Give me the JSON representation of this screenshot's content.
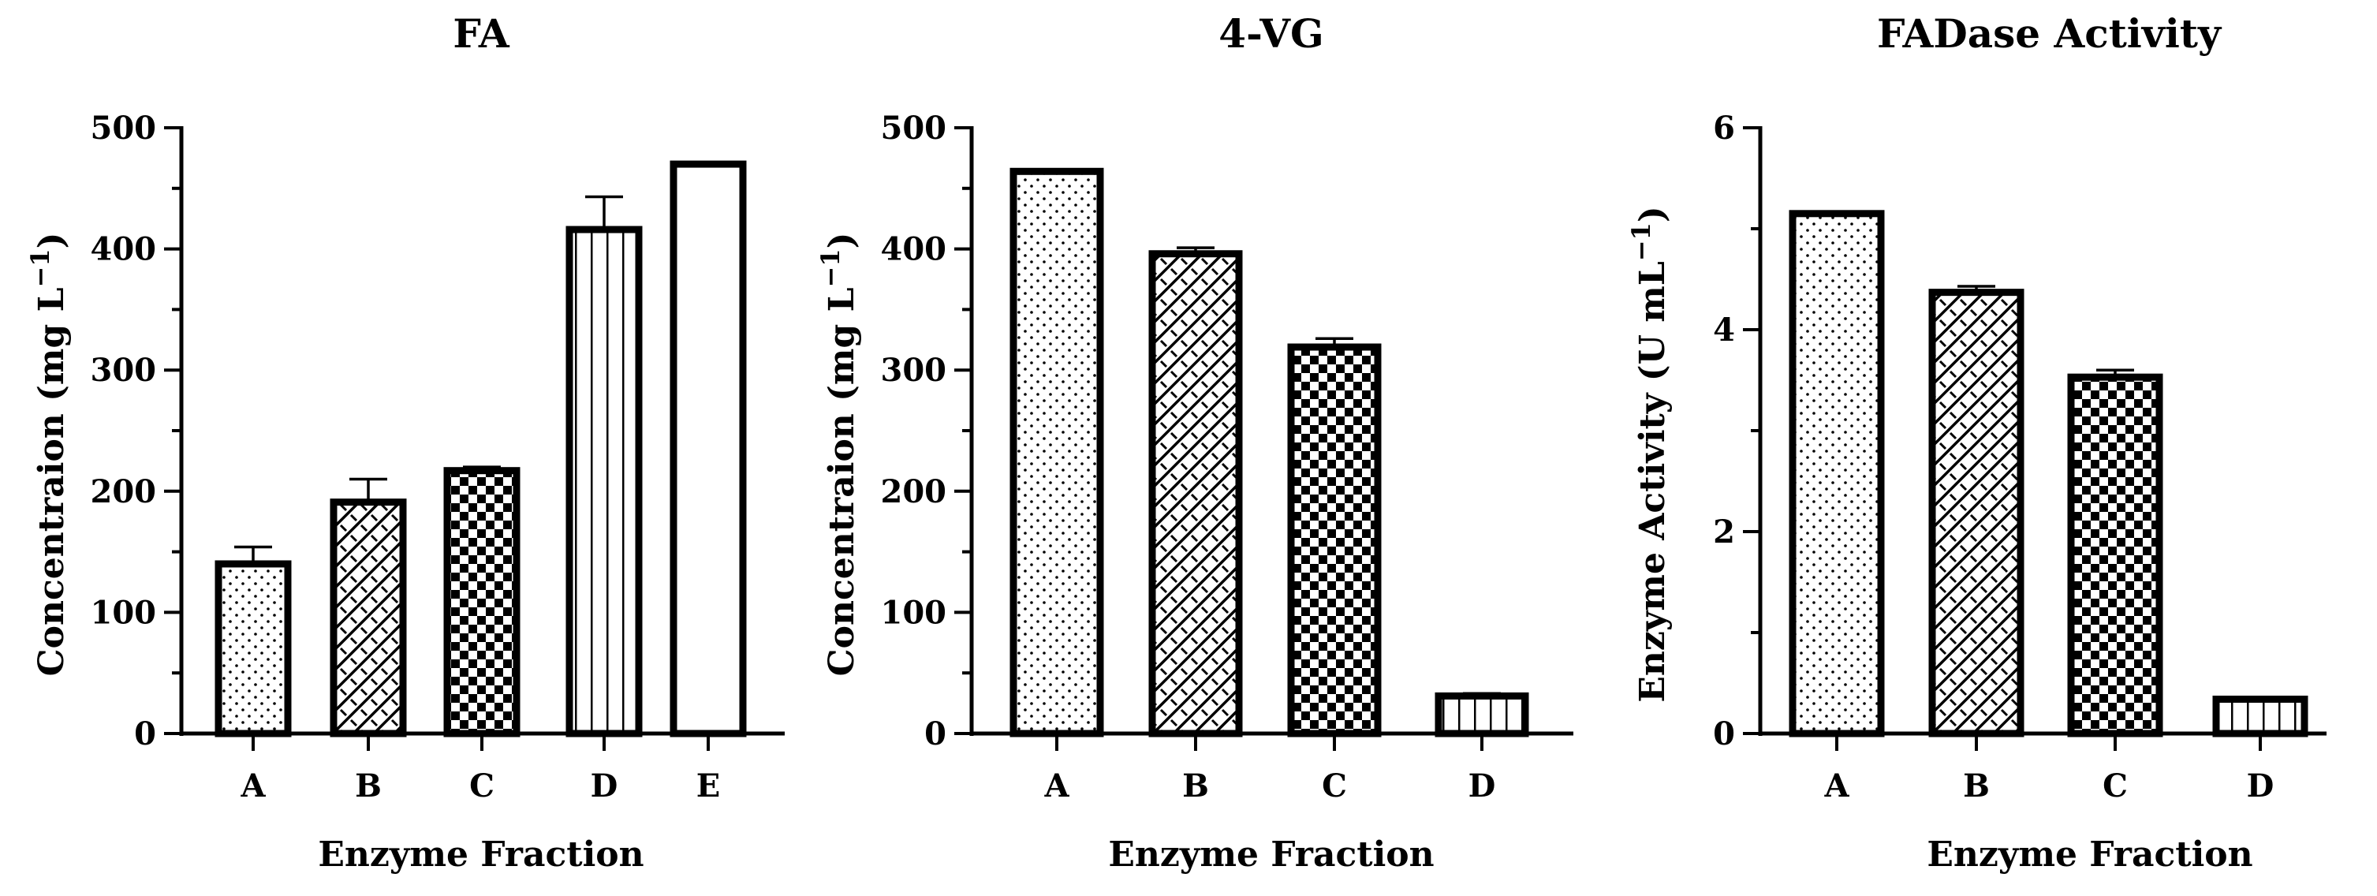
{
  "chart_data": [
    {
      "type": "bar",
      "title": "FA",
      "xlabel": "Enzyme Fraction",
      "ylabel": "Concentraion (mg L",
      "ylabel_sup": "−1",
      "ylabel_close": ")",
      "categories": [
        "A",
        "B",
        "C",
        "D",
        "E"
      ],
      "values": [
        140,
        191,
        217,
        416,
        470
      ],
      "errors": [
        14,
        19,
        3,
        27,
        0
      ],
      "patterns": [
        "dots",
        "diag",
        "checker",
        "vlines",
        "none"
      ],
      "ylim": [
        0,
        500
      ],
      "yticks": [
        0,
        100,
        200,
        300,
        400,
        500
      ],
      "minor_step": 50,
      "grid": false
    },
    {
      "type": "bar",
      "title": "4-VG",
      "xlabel": "Enzyme Fraction",
      "ylabel": "Concentraion (mg L",
      "ylabel_sup": "−1",
      "ylabel_close": ")",
      "categories": [
        "A",
        "B",
        "C",
        "D"
      ],
      "values": [
        464,
        396,
        319,
        31
      ],
      "errors": [
        1,
        5,
        7,
        2
      ],
      "patterns": [
        "dots",
        "diag",
        "checker",
        "vlines"
      ],
      "ylim": [
        0,
        500
      ],
      "yticks": [
        0,
        100,
        200,
        300,
        400,
        500
      ],
      "minor_step": 50,
      "grid": false
    },
    {
      "type": "bar",
      "title": "FADase Activity",
      "xlabel": "Enzyme Fraction",
      "ylabel": "Enzyme Activity (U mL",
      "ylabel_sup": "−1",
      "ylabel_close": ")",
      "categories": [
        "A",
        "B",
        "C",
        "D"
      ],
      "values": [
        5.15,
        4.37,
        3.53,
        0.34
      ],
      "errors": [
        0.01,
        0.06,
        0.07,
        0.01
      ],
      "patterns": [
        "dots",
        "diag",
        "checker",
        "vlines"
      ],
      "ylim": [
        0,
        6
      ],
      "yticks": [
        0,
        2,
        4,
        6
      ],
      "minor_step": 1,
      "grid": false
    }
  ]
}
